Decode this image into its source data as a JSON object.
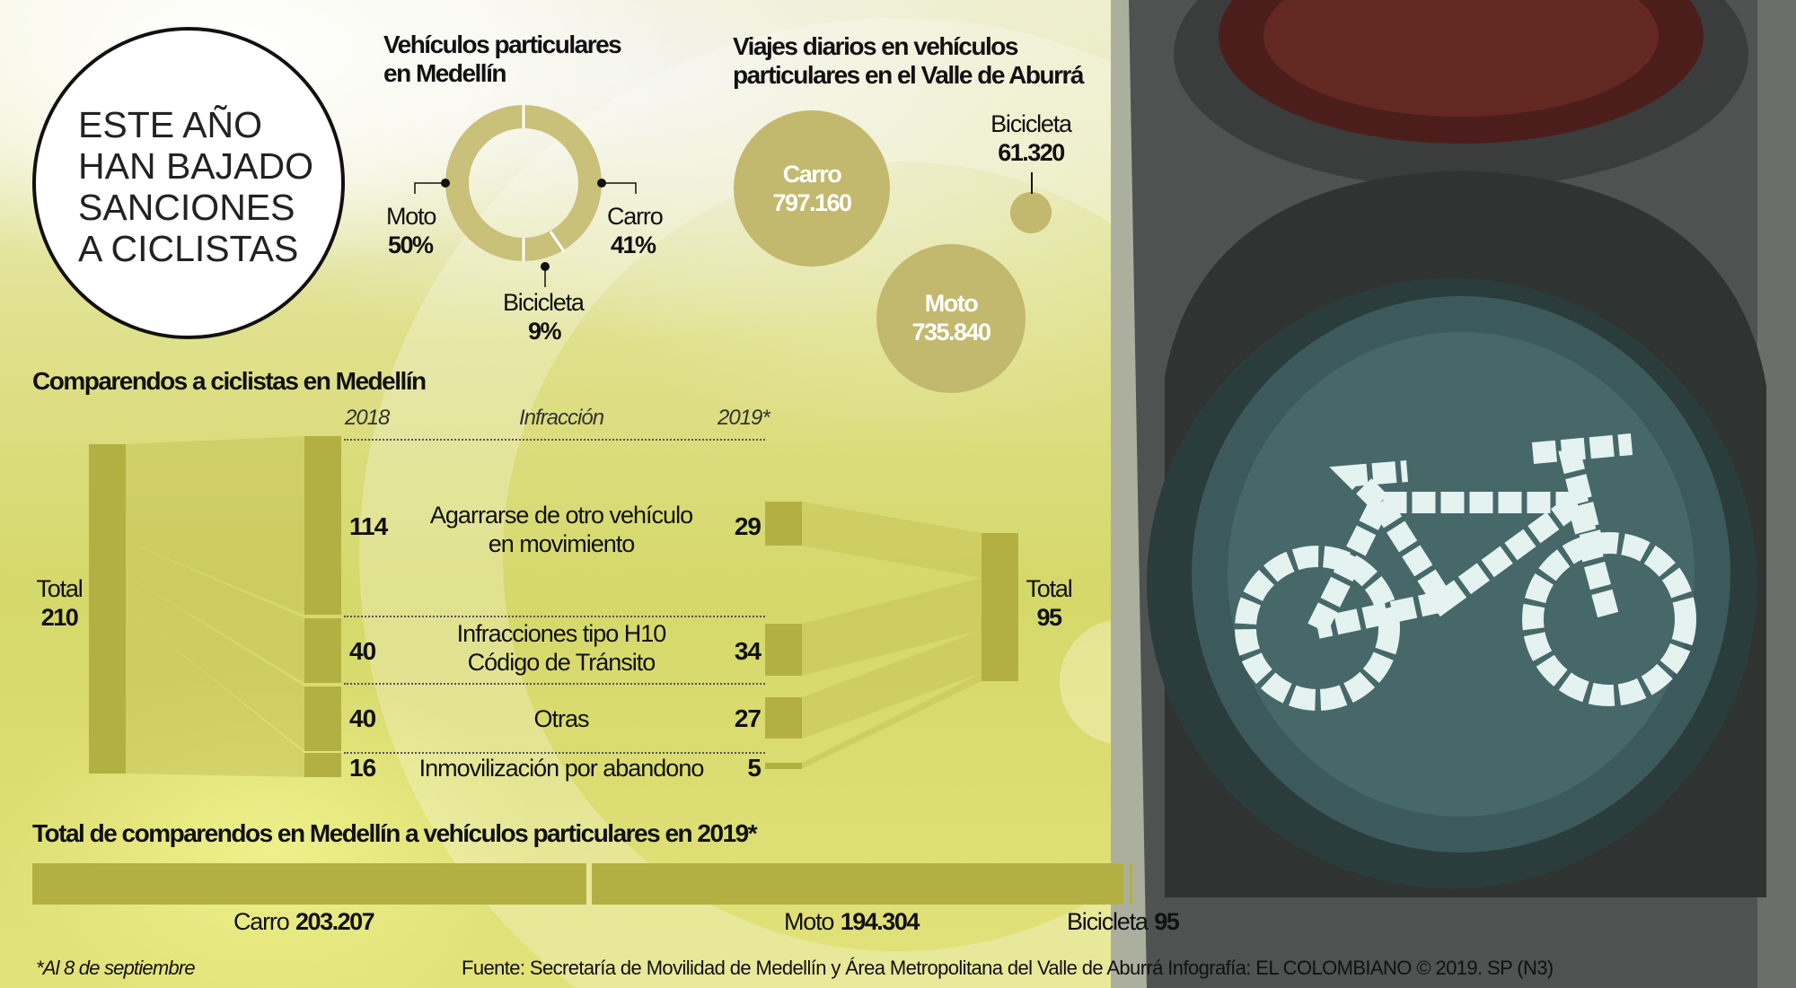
{
  "headline": [
    "ESTE AÑO",
    "HAN BAJADO",
    "SANCIONES",
    "A CICLISTAS"
  ],
  "chart_data": [
    {
      "type": "pie",
      "title": "Vehículos particulares en Medellín",
      "categories": [
        "Moto",
        "Carro",
        "Bicicleta"
      ],
      "values": [
        50,
        41,
        9
      ],
      "labels": [
        "50%",
        "41%",
        "9%"
      ],
      "colors": [
        "#c9c07a",
        "#c9c07a",
        "#c9c07a"
      ]
    },
    {
      "type": "bubble",
      "title": "Viajes diarios en vehículos particulares en el Valle de Aburrá",
      "categories": [
        "Carro",
        "Moto",
        "Bicicleta"
      ],
      "values": [
        797160,
        735840,
        61320
      ],
      "labels": [
        "797.160",
        "735.840",
        "61.320"
      ]
    },
    {
      "type": "table",
      "title": "Comparendos a ciclistas en Medellín",
      "columns": [
        "2018",
        "Infracción",
        "2019*"
      ],
      "rows": [
        {
          "infraccion": "Agarrarse de otro vehículo en movimiento",
          "infraccion_lines": [
            "Agarrarse de otro vehículo",
            "en movimiento"
          ],
          "y2018": 114,
          "y2019": 29
        },
        {
          "infraccion": "Infracciones tipo H10 Código de Tránsito",
          "infraccion_lines": [
            "Infracciones tipo H10",
            "Código de Tránsito"
          ],
          "y2018": 40,
          "y2019": 34
        },
        {
          "infraccion": "Otras",
          "infraccion_lines": [
            "Otras"
          ],
          "y2018": 40,
          "y2019": 27
        },
        {
          "infraccion": "Inmovilización por abandono",
          "infraccion_lines": [
            "Inmovilización por abandono"
          ],
          "y2018": 16,
          "y2019": 5
        }
      ],
      "total_label": "Total",
      "total_2018": 210,
      "total_2019": 95
    },
    {
      "type": "bar",
      "title": "Total de comparendos en Medellín a vehículos particulares en 2019*",
      "categories": [
        "Carro",
        "Moto",
        "Bicicleta"
      ],
      "values": [
        203207,
        194304,
        95
      ],
      "labels": [
        "203.207",
        "194.304",
        "95"
      ],
      "color": "#b3b043"
    }
  ],
  "footnote": "*Al 8 de septiembre",
  "source": "Fuente: Secretaría de Movilidad de Medellín y Área Metropolitana del Valle de Aburrá Infografía: EL COLOMBIANO © 2019. SP (N3)",
  "colors": {
    "accent": "#b3b043",
    "bubble": "#c2b96e",
    "lens": "#2e4a4c",
    "housing": "#5d6160"
  }
}
